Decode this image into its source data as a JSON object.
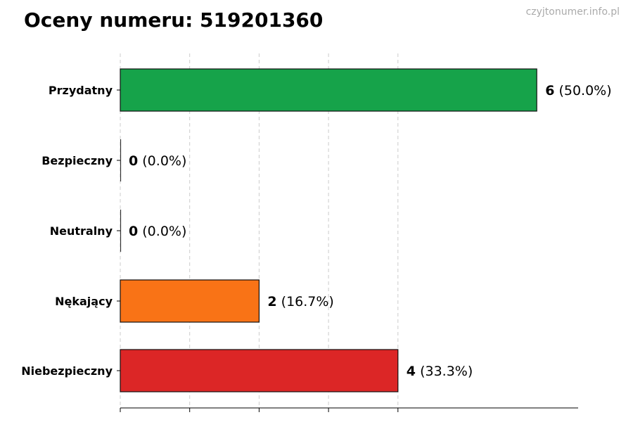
{
  "title": "Oceny numeru: 519201360",
  "watermark": "czyjtonumer.info.pl",
  "chart_data": {
    "type": "bar",
    "orientation": "horizontal",
    "categories": [
      "Przydatny",
      "Bezpieczny",
      "Neutralny",
      "Nękający",
      "Niebezpieczny"
    ],
    "values": [
      6,
      0,
      0,
      2,
      4
    ],
    "percent_labels": [
      "(50.0%)",
      "(0.0%)",
      "(0.0%)",
      "(16.7%)",
      "(33.3%)"
    ],
    "colors": [
      "#16a34a",
      "#16a34a",
      "#9ca3af",
      "#f97316",
      "#dc2626"
    ],
    "xlim": [
      0,
      6.6
    ],
    "xticks": [
      0,
      1,
      2,
      3,
      4
    ],
    "grid": true,
    "grid_style": "dashed-vertical"
  }
}
